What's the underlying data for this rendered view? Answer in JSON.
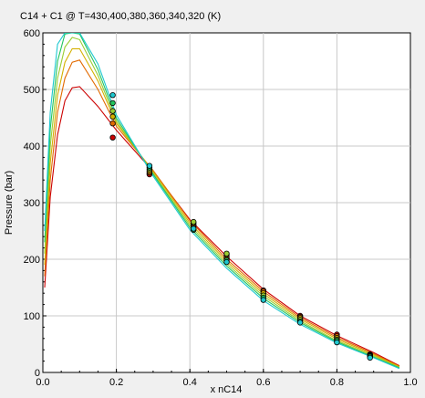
{
  "chart_data": {
    "type": "scatter",
    "title": "C14 + C1 @ T=430,400,380,360,340,320 (K)",
    "xlabel": "x nC14",
    "ylabel": "Pressure (bar)",
    "xlim": [
      0,
      1
    ],
    "ylim": [
      0,
      600
    ],
    "x_ticks": [
      0,
      0.2,
      0.4,
      0.6,
      0.8,
      1
    ],
    "x_tick_labels": [
      "0.0",
      "0.2",
      "0.4",
      "0.6",
      "0.8",
      "1.0"
    ],
    "y_ticks": [
      0,
      100,
      200,
      300,
      400,
      500,
      600
    ],
    "y_tick_labels": [
      "0",
      "100",
      "200",
      "300",
      "400",
      "500",
      "600"
    ],
    "grid": true,
    "series": [
      {
        "color": "#cc0000",
        "line": [
          [
            0.005,
            150
          ],
          [
            0.02,
            310
          ],
          [
            0.04,
            420
          ],
          [
            0.06,
            480
          ],
          [
            0.08,
            503
          ],
          [
            0.1,
            505
          ],
          [
            0.15,
            470
          ],
          [
            0.2,
            428
          ],
          [
            0.3,
            355
          ],
          [
            0.4,
            270
          ],
          [
            0.5,
            205
          ],
          [
            0.6,
            147
          ],
          [
            0.7,
            100
          ],
          [
            0.8,
            65
          ],
          [
            0.9,
            35
          ],
          [
            0.97,
            12
          ]
        ],
        "points": [
          [
            0.19,
            415
          ],
          [
            0.29,
            350
          ],
          [
            0.41,
            258
          ],
          [
            0.5,
            202
          ],
          [
            0.6,
            145
          ],
          [
            0.7,
            100
          ],
          [
            0.8,
            67
          ],
          [
            0.89,
            32
          ]
        ]
      },
      {
        "color": "#e26a00",
        "line": [
          [
            0.005,
            170
          ],
          [
            0.02,
            340
          ],
          [
            0.04,
            460
          ],
          [
            0.06,
            520
          ],
          [
            0.08,
            548
          ],
          [
            0.1,
            552
          ],
          [
            0.15,
            500
          ],
          [
            0.2,
            435
          ],
          [
            0.3,
            357
          ],
          [
            0.4,
            268
          ],
          [
            0.5,
            200
          ],
          [
            0.6,
            143
          ],
          [
            0.7,
            97
          ],
          [
            0.8,
            62
          ],
          [
            0.9,
            33
          ],
          [
            0.97,
            11
          ]
        ],
        "points": [
          [
            0.19,
            440
          ],
          [
            0.29,
            353
          ],
          [
            0.41,
            261
          ],
          [
            0.5,
            205
          ],
          [
            0.6,
            143
          ],
          [
            0.7,
            98
          ],
          [
            0.8,
            64
          ],
          [
            0.89,
            31
          ]
        ]
      },
      {
        "color": "#d4b000",
        "line": [
          [
            0.005,
            190
          ],
          [
            0.02,
            370
          ],
          [
            0.04,
            490
          ],
          [
            0.06,
            548
          ],
          [
            0.08,
            572
          ],
          [
            0.1,
            572
          ],
          [
            0.15,
            515
          ],
          [
            0.2,
            440
          ],
          [
            0.3,
            355
          ],
          [
            0.4,
            264
          ],
          [
            0.5,
            196
          ],
          [
            0.6,
            139
          ],
          [
            0.7,
            94
          ],
          [
            0.8,
            59
          ],
          [
            0.9,
            31
          ],
          [
            0.97,
            10
          ]
        ],
        "points": [
          [
            0.19,
            452
          ],
          [
            0.29,
            356
          ],
          [
            0.41,
            264
          ],
          [
            0.5,
            208
          ],
          [
            0.6,
            140
          ],
          [
            0.7,
            96
          ],
          [
            0.8,
            61
          ],
          [
            0.89,
            30
          ]
        ]
      },
      {
        "color": "#9acd32",
        "line": [
          [
            0.005,
            210
          ],
          [
            0.02,
            400
          ],
          [
            0.04,
            520
          ],
          [
            0.06,
            575
          ],
          [
            0.08,
            592
          ],
          [
            0.1,
            588
          ],
          [
            0.15,
            525
          ],
          [
            0.2,
            444
          ],
          [
            0.3,
            352
          ],
          [
            0.4,
            260
          ],
          [
            0.5,
            192
          ],
          [
            0.6,
            135
          ],
          [
            0.7,
            91
          ],
          [
            0.8,
            56
          ],
          [
            0.9,
            29
          ],
          [
            0.97,
            9
          ]
        ],
        "points": [
          [
            0.19,
            462
          ],
          [
            0.29,
            359
          ],
          [
            0.41,
            266
          ],
          [
            0.5,
            210
          ],
          [
            0.6,
            136
          ],
          [
            0.7,
            93
          ],
          [
            0.8,
            58
          ],
          [
            0.89,
            29
          ]
        ]
      },
      {
        "color": "#22c55e",
        "line": [
          [
            0.005,
            230
          ],
          [
            0.02,
            430
          ],
          [
            0.04,
            550
          ],
          [
            0.06,
            598
          ],
          [
            0.08,
            600
          ],
          [
            0.1,
            598
          ],
          [
            0.15,
            535
          ],
          [
            0.2,
            449
          ],
          [
            0.3,
            350
          ],
          [
            0.4,
            256
          ],
          [
            0.5,
            188
          ],
          [
            0.6,
            131
          ],
          [
            0.7,
            88
          ],
          [
            0.8,
            54
          ],
          [
            0.9,
            27
          ],
          [
            0.97,
            8
          ]
        ],
        "points": [
          [
            0.19,
            476
          ],
          [
            0.29,
            362
          ],
          [
            0.41,
            252
          ],
          [
            0.5,
            198
          ],
          [
            0.6,
            132
          ],
          [
            0.7,
            90
          ],
          [
            0.8,
            56
          ],
          [
            0.89,
            28
          ]
        ]
      },
      {
        "color": "#1ec8d0",
        "line": [
          [
            0.005,
            250
          ],
          [
            0.02,
            460
          ],
          [
            0.04,
            580
          ],
          [
            0.06,
            600
          ],
          [
            0.08,
            600
          ],
          [
            0.1,
            600
          ],
          [
            0.15,
            545
          ],
          [
            0.2,
            455
          ],
          [
            0.3,
            347
          ],
          [
            0.4,
            252
          ],
          [
            0.5,
            184
          ],
          [
            0.6,
            127
          ],
          [
            0.7,
            85
          ],
          [
            0.8,
            52
          ],
          [
            0.9,
            26
          ],
          [
            0.97,
            7
          ]
        ],
        "points": [
          [
            0.19,
            490
          ],
          [
            0.29,
            365
          ],
          [
            0.41,
            254
          ],
          [
            0.5,
            195
          ],
          [
            0.6,
            128
          ],
          [
            0.7,
            88
          ],
          [
            0.8,
            53
          ],
          [
            0.89,
            26
          ]
        ]
      }
    ]
  }
}
